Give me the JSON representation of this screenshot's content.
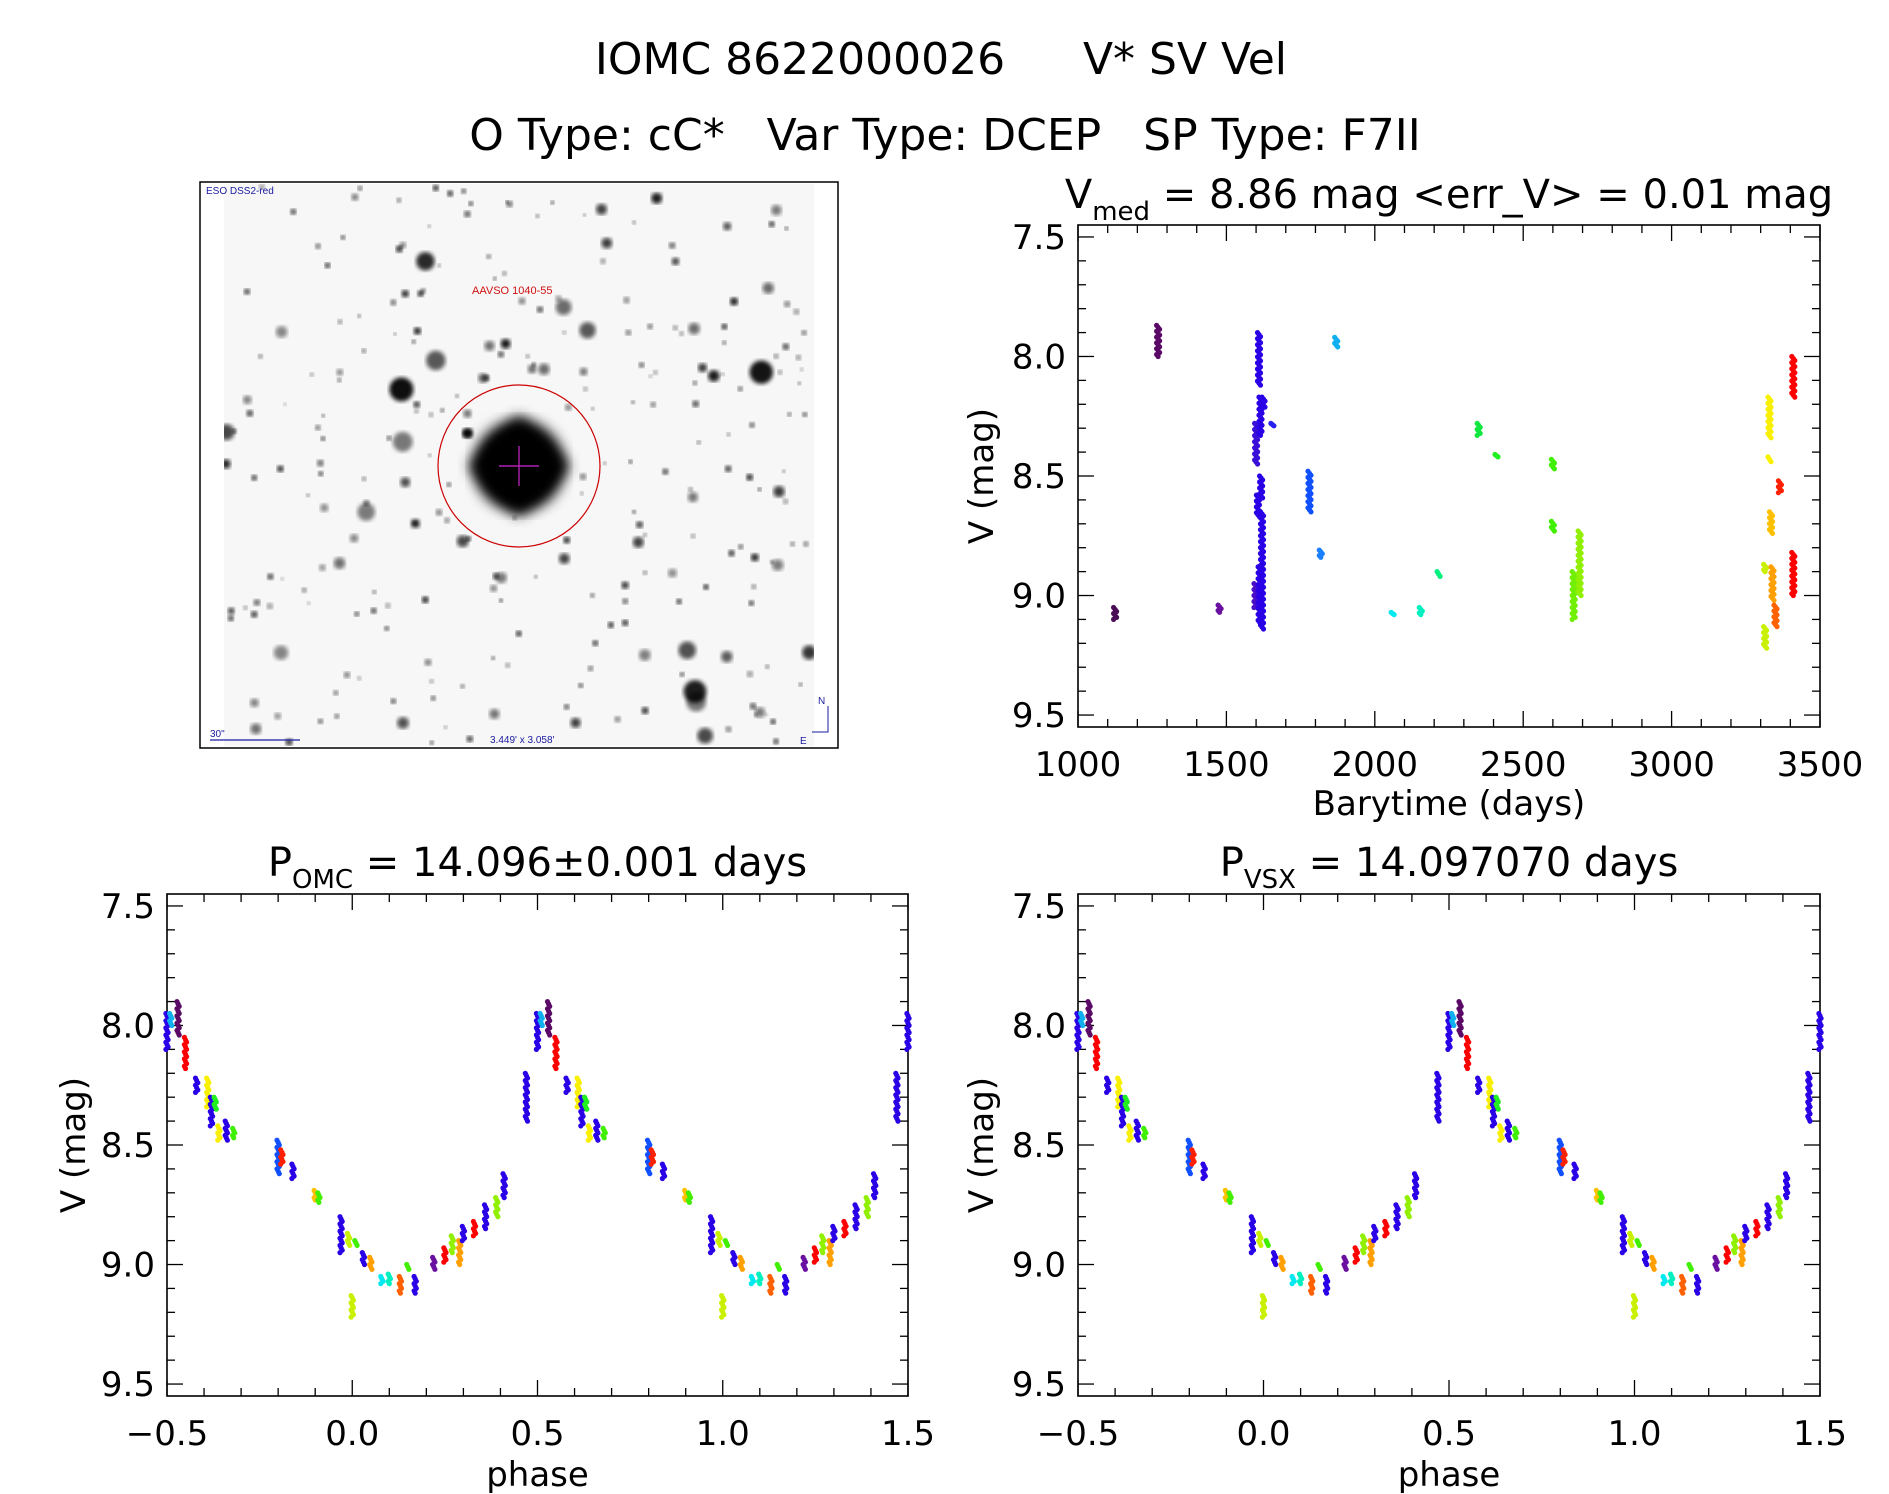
{
  "header": {
    "line1_id": "IOMC 8622000026",
    "line1_name": "V* SV Vel",
    "line2": "O Type: cC*   Var Type: DCEP   SP Type: F7II"
  },
  "finder_chart": {
    "survey": "ESO DSS2-red",
    "target_label": "AAVSO 1040-55",
    "scale_bar": "30\"",
    "field_size": "3.449' x 3.058'",
    "north": "N",
    "east": "E"
  },
  "chart_data": [
    {
      "type": "scatter",
      "title": {
        "symbol": "V",
        "subscript": "med",
        "rest": " = 8.86 mag  <err_V> = 0.01 mag"
      },
      "xlabel": "Barytime (days)",
      "ylabel": "V (mag)",
      "xlim": [
        1000,
        3500
      ],
      "ylim": [
        7.45,
        9.55
      ],
      "y_inverted": true,
      "xticks": [
        "1000",
        "1500",
        "2000",
        "2500",
        "3000",
        "3500"
      ],
      "yticks": [
        "7.5",
        "8.0",
        "8.5",
        "9.0",
        "9.5"
      ],
      "clusters": [
        {
          "t": 1125,
          "v": [
            9.05,
            9.1
          ],
          "color": "#4a0a55"
        },
        {
          "t": 1270,
          "v": [
            7.87,
            8.0
          ],
          "color": "#5a0a66"
        },
        {
          "t": 1477,
          "v": [
            9.04,
            9.07
          ],
          "color": "#6a10a0"
        },
        {
          "t": 1600,
          "v": [
            8.28,
            8.45
          ],
          "color": "#3a10d8"
        },
        {
          "t": 1598,
          "v": [
            8.95,
            9.05
          ],
          "color": "#4a10c8"
        },
        {
          "t": 1610,
          "v": [
            7.9,
            8.12
          ],
          "color": "#2a00e6"
        },
        {
          "t": 1606,
          "v": [
            8.58,
            8.67
          ],
          "color": "#2a00e6"
        },
        {
          "t": 1612,
          "v": [
            8.88,
            9.12
          ],
          "color": "#2a00e6"
        },
        {
          "t": 1615,
          "v": [
            8.17,
            8.33
          ],
          "color": "#2a00e6"
        },
        {
          "t": 1617,
          "v": [
            8.5,
            8.6
          ],
          "color": "#2a00e6"
        },
        {
          "t": 1620,
          "v": [
            8.65,
            9.14
          ],
          "color": "#2a00e6"
        },
        {
          "t": 1625,
          "v": [
            8.17,
            8.22
          ],
          "color": "#2a00e6"
        },
        {
          "t": 1655,
          "v": [
            8.28,
            8.29
          ],
          "color": "#2a20f0"
        },
        {
          "t": 1780,
          "v": [
            8.48,
            8.65
          ],
          "color": "#1050ff"
        },
        {
          "t": 1818,
          "v": [
            8.81,
            8.84
          ],
          "color": "#1a80ff"
        },
        {
          "t": 1870,
          "v": [
            7.92,
            7.96
          ],
          "color": "#10b0f0"
        },
        {
          "t": 2060,
          "v": [
            9.07,
            9.08
          ],
          "color": "#00e8f0"
        },
        {
          "t": 2155,
          "v": [
            9.05,
            9.08
          ],
          "color": "#00f0c0"
        },
        {
          "t": 2215,
          "v": [
            8.9,
            8.92
          ],
          "color": "#00f080"
        },
        {
          "t": 2350,
          "v": [
            8.28,
            8.33
          ],
          "color": "#10e840"
        },
        {
          "t": 2410,
          "v": [
            8.41,
            8.42
          ],
          "color": "#20f020"
        },
        {
          "t": 2600,
          "v": [
            8.43,
            8.47
          ],
          "color": "#40f000"
        },
        {
          "t": 2600,
          "v": [
            8.69,
            8.73
          ],
          "color": "#40f000"
        },
        {
          "t": 2670,
          "v": [
            8.9,
            9.1
          ],
          "color": "#70f000"
        },
        {
          "t": 2690,
          "v": [
            8.73,
            9.0
          ],
          "color": "#90f000"
        },
        {
          "t": 3315,
          "v": [
            8.87,
            8.9
          ],
          "color": "#c8f000"
        },
        {
          "t": 3315,
          "v": [
            9.13,
            9.22
          ],
          "color": "#c8f000"
        },
        {
          "t": 3330,
          "v": [
            8.17,
            8.34
          ],
          "color": "#f8f000"
        },
        {
          "t": 3330,
          "v": [
            8.42,
            8.44
          ],
          "color": "#f8f000"
        },
        {
          "t": 3335,
          "v": [
            8.65,
            8.74
          ],
          "color": "#ffc000"
        },
        {
          "t": 3340,
          "v": [
            8.88,
            9.02
          ],
          "color": "#ffa000"
        },
        {
          "t": 3350,
          "v": [
            9.04,
            9.13
          ],
          "color": "#ff6000"
        },
        {
          "t": 3365,
          "v": [
            8.52,
            8.57
          ],
          "color": "#ff2000"
        },
        {
          "t": 3410,
          "v": [
            8.0,
            8.17
          ],
          "color": "#ff0000"
        },
        {
          "t": 3410,
          "v": [
            8.82,
            9.0
          ],
          "color": "#ff0000"
        }
      ]
    },
    {
      "type": "scatter",
      "title": {
        "symbol": "P",
        "subscript": "OMC",
        "rest": " = 14.096±0.001 days"
      },
      "xlabel": "phase",
      "ylabel": "V (mag)",
      "xlim": [
        -0.5,
        1.5
      ],
      "ylim": [
        7.45,
        9.55
      ],
      "y_inverted": true,
      "xticks": [
        "−0.5",
        "0.0",
        "0.5",
        "1.0",
        "1.5"
      ],
      "yticks": [
        "7.5",
        "8.0",
        "8.5",
        "9.0",
        "9.5"
      ],
      "phase_shift": 0
    },
    {
      "type": "scatter",
      "title": {
        "symbol": "P",
        "subscript": "VSX",
        "rest": " = 14.097070 days"
      },
      "xlabel": "phase",
      "ylabel": "V (mag)",
      "xlim": [
        -0.5,
        1.5
      ],
      "ylim": [
        7.45,
        9.55
      ],
      "y_inverted": true,
      "xticks": [
        "−0.5",
        "0.0",
        "0.5",
        "1.0",
        "1.5"
      ],
      "yticks": [
        "7.5",
        "8.0",
        "8.5",
        "9.0",
        "9.5"
      ],
      "phase_shift": 0
    }
  ],
  "phase_curve": [
    {
      "p": 0.47,
      "v": [
        8.2,
        8.4
      ],
      "color": "#2a00e6"
    },
    {
      "p": 0.5,
      "v": [
        7.95,
        8.1
      ],
      "color": "#2a00e6"
    },
    {
      "p": 0.51,
      "v": [
        7.95,
        8.0
      ],
      "color": "#10b0f0"
    },
    {
      "p": 0.53,
      "v": [
        7.9,
        8.04
      ],
      "color": "#5a0a66"
    },
    {
      "p": 0.55,
      "v": [
        8.05,
        8.18
      ],
      "color": "#ff0000"
    },
    {
      "p": 0.58,
      "v": [
        8.22,
        8.28
      ],
      "color": "#2a00e6"
    },
    {
      "p": 0.61,
      "v": [
        8.22,
        8.34
      ],
      "color": "#f8f000"
    },
    {
      "p": 0.62,
      "v": [
        8.3,
        8.42
      ],
      "color": "#2a00e6"
    },
    {
      "p": 0.63,
      "v": [
        8.3,
        8.35
      ],
      "color": "#20f020"
    },
    {
      "p": 0.64,
      "v": [
        8.42,
        8.48
      ],
      "color": "#f8f000"
    },
    {
      "p": 0.66,
      "v": [
        8.4,
        8.48
      ],
      "color": "#2a00e6"
    },
    {
      "p": 0.68,
      "v": [
        8.43,
        8.47
      ],
      "color": "#40f000"
    },
    {
      "p": 0.8,
      "v": [
        8.48,
        8.62
      ],
      "color": "#1050ff"
    },
    {
      "p": 0.81,
      "v": [
        8.52,
        8.58
      ],
      "color": "#ff2000"
    },
    {
      "p": 0.84,
      "v": [
        8.58,
        8.64
      ],
      "color": "#2a00e6"
    },
    {
      "p": 0.9,
      "v": [
        8.69,
        8.73
      ],
      "color": "#ffc000"
    },
    {
      "p": 0.91,
      "v": [
        8.7,
        8.74
      ],
      "color": "#40f000"
    },
    {
      "p": 0.97,
      "v": [
        8.8,
        8.95
      ],
      "color": "#2a00e6"
    },
    {
      "p": 0.99,
      "v": [
        8.87,
        8.92
      ],
      "color": "#c8f000"
    },
    {
      "p": 1.0,
      "v": [
        9.13,
        9.22
      ],
      "color": "#c8f000"
    },
    {
      "p": 1.01,
      "v": [
        8.9,
        8.92
      ],
      "color": "#40f000"
    },
    {
      "p": 1.03,
      "v": [
        8.95,
        9.0
      ],
      "color": "#2a00e6"
    },
    {
      "p": 1.05,
      "v": [
        8.97,
        9.02
      ],
      "color": "#ffa000"
    },
    {
      "p": 1.08,
      "v": [
        9.05,
        9.08
      ],
      "color": "#00e8f0"
    },
    {
      "p": 1.1,
      "v": [
        9.04,
        9.08
      ],
      "color": "#00f0c0"
    },
    {
      "p": 1.13,
      "v": [
        9.05,
        9.12
      ],
      "color": "#ff6000"
    },
    {
      "p": 1.15,
      "v": [
        9.0,
        9.02
      ],
      "color": "#40f000"
    },
    {
      "p": 1.17,
      "v": [
        9.05,
        9.12
      ],
      "color": "#2a00e6"
    },
    {
      "p": 1.22,
      "v": [
        8.97,
        9.02
      ],
      "color": "#6a10a0"
    },
    {
      "p": 1.25,
      "v": [
        8.93,
        8.99
      ],
      "color": "#ff0000"
    },
    {
      "p": 1.27,
      "v": [
        8.88,
        8.95
      ],
      "color": "#90f000"
    },
    {
      "p": 1.29,
      "v": [
        8.9,
        9.0
      ],
      "color": "#ffa000"
    },
    {
      "p": 1.3,
      "v": [
        8.84,
        8.9
      ],
      "color": "#2a00e6"
    },
    {
      "p": 1.33,
      "v": [
        8.82,
        8.88
      ],
      "color": "#ff0000"
    },
    {
      "p": 1.36,
      "v": [
        8.75,
        8.85
      ],
      "color": "#2a00e6"
    },
    {
      "p": 1.39,
      "v": [
        8.72,
        8.8
      ],
      "color": "#90f000"
    },
    {
      "p": 1.41,
      "v": [
        8.62,
        8.72
      ],
      "color": "#2a00e6"
    }
  ]
}
